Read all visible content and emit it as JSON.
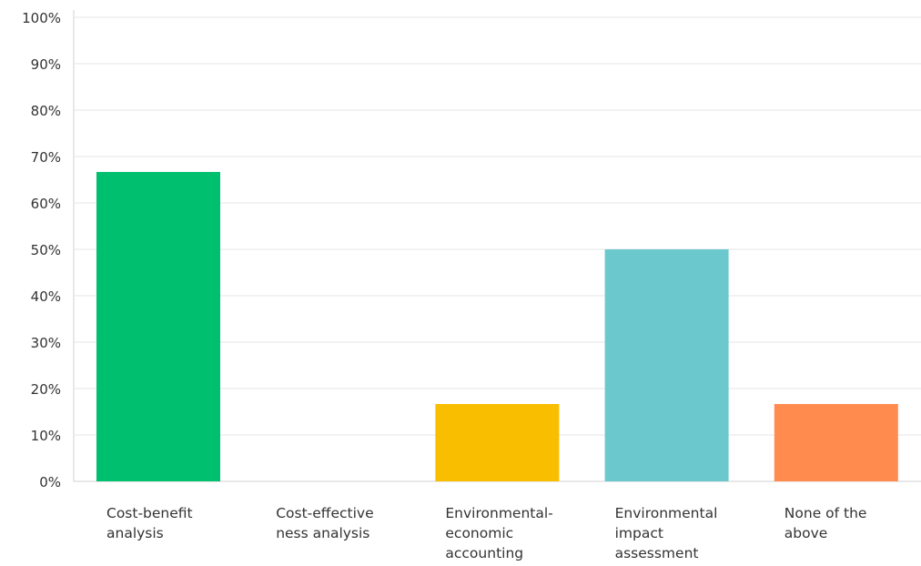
{
  "chart_data": {
    "type": "bar",
    "categories": [
      [
        "Cost-benefit",
        "analysis"
      ],
      [
        "Cost-effective",
        "ness analysis"
      ],
      [
        "Environmental-",
        "economic",
        "accounting"
      ],
      [
        "Environmental",
        "impact",
        "assessment"
      ],
      [
        "None of the",
        "above"
      ]
    ],
    "values": [
      66.67,
      0,
      16.67,
      50,
      16.67
    ],
    "colors": [
      "#00bf6f",
      "#507cb6",
      "#f9be00",
      "#6bc8cd",
      "#ff8b4f"
    ],
    "ylim": [
      0,
      100
    ],
    "yticks": [
      0,
      10,
      20,
      30,
      40,
      50,
      60,
      70,
      80,
      90,
      100
    ],
    "ytick_labels": [
      "0%",
      "10%",
      "20%",
      "30%",
      "40%",
      "50%",
      "60%",
      "70%",
      "80%",
      "90%",
      "100%"
    ],
    "grid": true,
    "title": "",
    "xlabel": "",
    "ylabel": ""
  }
}
